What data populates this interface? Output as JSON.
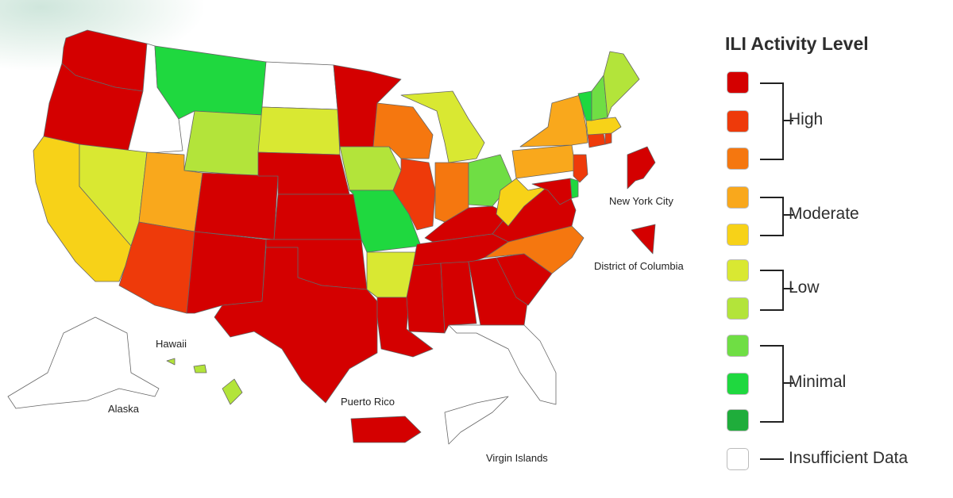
{
  "legend": {
    "title": "ILI Activity Level",
    "swatch_colors": [
      "#d40000",
      "#ee3a0a",
      "#f5770f",
      "#f9a81c",
      "#f7d218",
      "#d9e832",
      "#b3e43a",
      "#6fde44",
      "#1fd83f",
      "#1fad3b",
      "#ffffff"
    ],
    "groups": [
      "High",
      "Moderate",
      "Low",
      "Minimal"
    ],
    "insufficient": "Insufficient Data"
  },
  "map_labels": {
    "nyc": "New York City",
    "dc": "District of Columbia",
    "hawaii": "Hawaii",
    "alaska": "Alaska",
    "puerto_rico": "Puerto Rico",
    "virgin_islands": "Virgin Islands"
  },
  "states": {
    "WA": "#d40000",
    "OR": "#d40000",
    "CA": "#f7d218",
    "ID": "#ffffff",
    "NV": "#d9e832",
    "MT": "#1fd83f",
    "WY": "#b3e43a",
    "UT": "#f9a81c",
    "AZ": "#ee3a0a",
    "CO": "#d40000",
    "NM": "#d40000",
    "ND": "#ffffff",
    "SD": "#d9e832",
    "NE": "#d40000",
    "KS": "#d40000",
    "OK": "#d40000",
    "TX": "#d40000",
    "MN": "#d40000",
    "IA": "#b3e43a",
    "MO": "#1fd83f",
    "AR": "#d9e832",
    "LA": "#d40000",
    "WI": "#f5770f",
    "IL": "#ee3a0a",
    "MI": "#d9e832",
    "IN": "#f5770f",
    "OH": "#6fde44",
    "KY": "#d40000",
    "TN": "#d40000",
    "MS": "#d40000",
    "AL": "#d40000",
    "GA": "#d40000",
    "FL": "#ffffff",
    "SC": "#d40000",
    "NC": "#f5770f",
    "VA": "#d40000",
    "WV": "#f7d218",
    "PA": "#f9a81c",
    "NY": "#f9a81c",
    "NJ": "#ee3a0a",
    "DE": "#1fd83f",
    "MD": "#d40000",
    "CT": "#ee3a0a",
    "RI": "#ee3a0a",
    "MA": "#f7d218",
    "VT": "#1fd83f",
    "NH": "#6fde44",
    "ME": "#b3e43a",
    "AK": "#ffffff",
    "HI": "#b3e43a",
    "PR": "#d40000",
    "VI": "#ffffff",
    "NYC": "#d40000",
    "DC": "#d40000"
  }
}
